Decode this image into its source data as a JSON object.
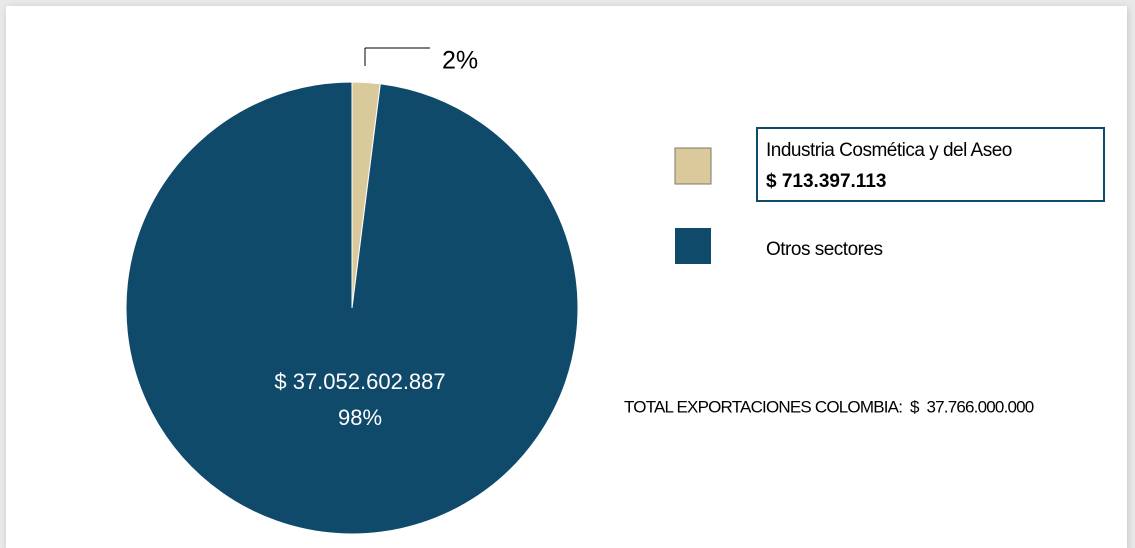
{
  "chart_data": {
    "type": "pie",
    "categories": [
      "Industria Cosmética y del Aseo",
      "Otros sectores"
    ],
    "values": [
      2,
      98
    ],
    "value_labels": [
      "2%",
      "98%"
    ],
    "amount_labels": [
      "$ 713.397.113",
      "$ 37.052.602.887"
    ],
    "colors": [
      "#d9c99b",
      "#0f4a6b"
    ],
    "total_label": "TOTAL EXPORTACIONES COLOMBIA:  $  37.766.000.000"
  }
}
